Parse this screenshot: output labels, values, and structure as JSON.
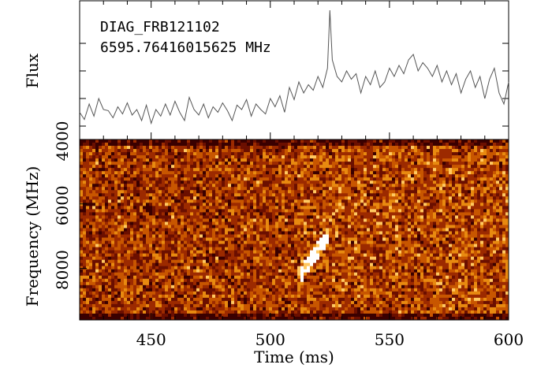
{
  "chart_data": [
    {
      "type": "line",
      "panel": "flux",
      "title": "DIAG_FRB121102",
      "subtitle": "6595.76416015625 MHz",
      "ylabel": "Flux",
      "xlim": [
        420,
        600
      ],
      "series": [
        {
          "x": [
            420,
            422,
            424,
            426,
            428,
            430,
            432,
            434,
            436,
            438,
            440,
            442,
            444,
            446,
            448,
            450,
            452,
            454,
            456,
            458,
            460,
            462,
            464,
            466,
            468,
            470,
            472,
            474,
            476,
            478,
            480,
            482,
            484,
            486,
            488,
            490,
            492,
            494,
            496,
            498,
            500,
            502,
            504,
            506,
            508,
            510,
            512,
            514,
            516,
            518,
            520,
            522,
            524,
            525,
            526,
            528,
            530,
            532,
            534,
            536,
            538,
            540,
            542,
            544,
            546,
            548,
            550,
            552,
            554,
            556,
            558,
            560,
            562,
            564,
            566,
            568,
            570,
            572,
            574,
            576,
            578,
            580,
            582,
            584,
            586,
            588,
            590,
            592,
            594,
            596,
            598,
            600
          ],
          "values": [
            0.25,
            0.12,
            0.4,
            0.18,
            0.5,
            0.3,
            0.28,
            0.15,
            0.35,
            0.22,
            0.42,
            0.2,
            0.3,
            0.1,
            0.38,
            0.05,
            0.3,
            0.18,
            0.4,
            0.2,
            0.45,
            0.25,
            0.1,
            0.52,
            0.3,
            0.2,
            0.4,
            0.15,
            0.35,
            0.25,
            0.42,
            0.28,
            0.1,
            0.38,
            0.3,
            0.48,
            0.18,
            0.4,
            0.3,
            0.22,
            0.5,
            0.35,
            0.55,
            0.25,
            0.7,
            0.48,
            0.8,
            0.6,
            0.75,
            0.65,
            0.9,
            0.7,
            1.05,
            2.1,
            1.2,
            0.9,
            0.8,
            1.0,
            0.85,
            0.95,
            0.6,
            0.9,
            0.75,
            1.0,
            0.7,
            0.8,
            1.05,
            0.9,
            1.1,
            0.95,
            1.2,
            1.3,
            1.0,
            1.15,
            1.05,
            0.9,
            1.1,
            0.8,
            1.0,
            0.75,
            0.95,
            0.6,
            0.85,
            1.0,
            0.7,
            0.9,
            0.5,
            0.85,
            1.05,
            0.6,
            0.4,
            0.8
          ]
        }
      ]
    },
    {
      "type": "heatmap",
      "panel": "dynamic-spectrum",
      "xlabel": "Time (ms)",
      "ylabel": "Frequency (MHz)",
      "xlim": [
        420,
        600
      ],
      "ylim": [
        4000,
        9600
      ],
      "xticks": [
        "450",
        "500",
        "550",
        "600"
      ],
      "yticks": [
        "4000",
        "6000",
        "8000"
      ],
      "colormap": [
        "#3a0000",
        "#6b0f00",
        "#9c2a00",
        "#c85600",
        "#e88a10",
        "#ffc860",
        "#ffffff"
      ],
      "burst": {
        "start_time": 512,
        "end_time": 524,
        "start_freq": 8300,
        "end_freq": 7000
      }
    }
  ]
}
